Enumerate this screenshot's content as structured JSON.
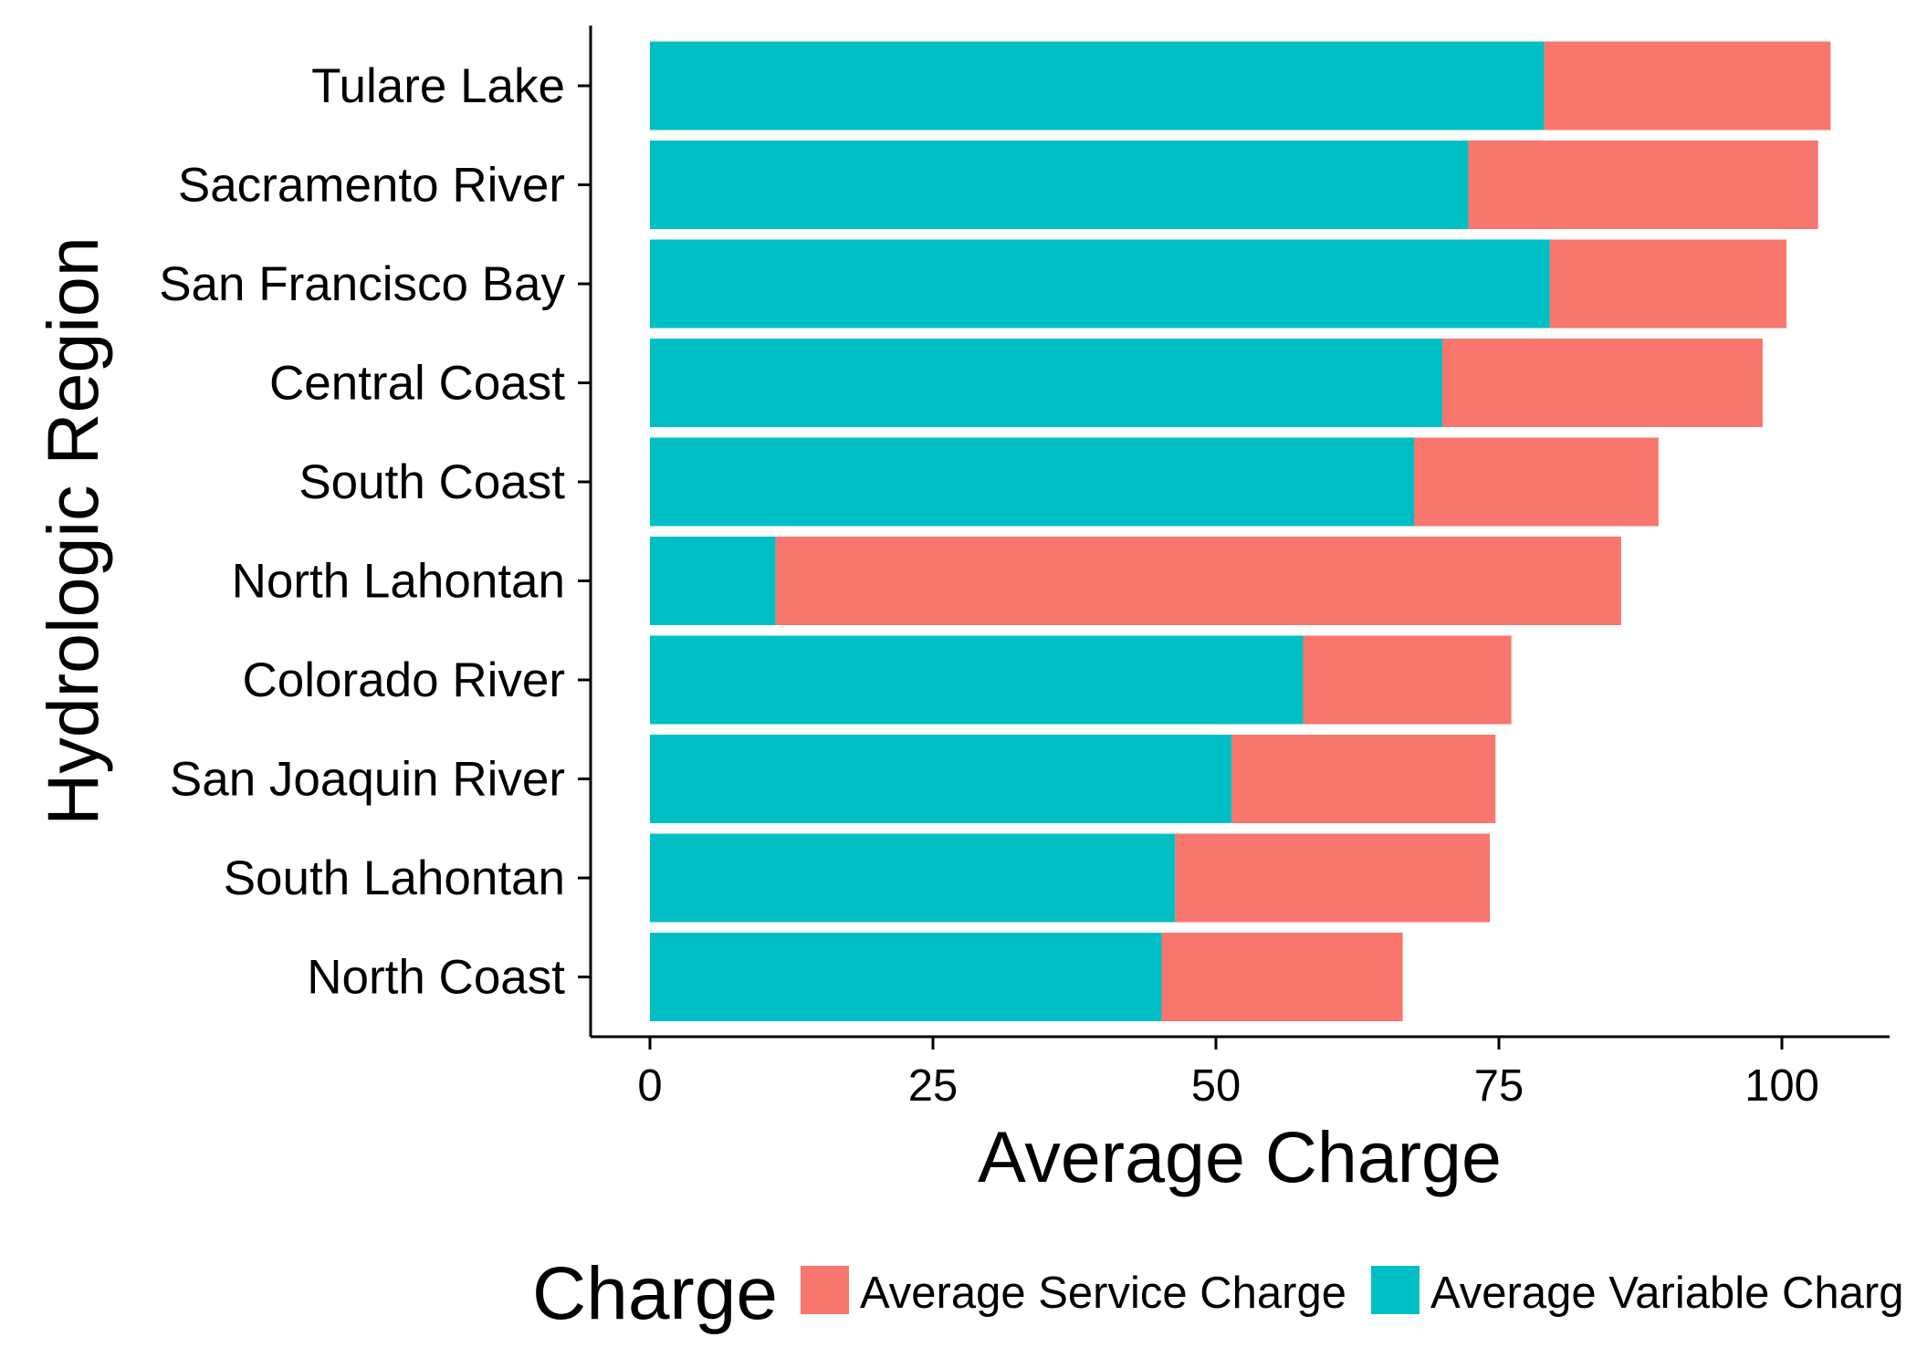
{
  "chart_data": {
    "type": "bar",
    "orientation": "horizontal",
    "stacked": true,
    "title": "",
    "xlabel": "Average Charge",
    "ylabel": "Hydrologic Region",
    "xlim": [
      0,
      106
    ],
    "xticks": [
      0,
      25,
      50,
      75,
      100
    ],
    "grid": false,
    "legend_position": "bottom",
    "legend_title": "Charge",
    "categories": [
      "Tulare Lake",
      "Sacramento River",
      "San Francisco Bay",
      "Central Coast",
      "South Coast",
      "North Lahontan",
      "Colorado River",
      "San Joaquin River",
      "South Lahontan",
      "North Coast"
    ],
    "series": [
      {
        "name": "Average Variable Charge",
        "color": "#00BFC4",
        "values": [
          79,
          72.3,
          79.5,
          70,
          67.5,
          11.1,
          57.7,
          51.4,
          46.4,
          45.2
        ]
      },
      {
        "name": "Average Service Charge",
        "color": "#F8766D",
        "values": [
          25.3,
          30.9,
          20.9,
          28.3,
          21.6,
          74.7,
          18.4,
          23.3,
          27.8,
          21.3
        ]
      }
    ],
    "legend_entries": [
      {
        "label": "Average Service Charge",
        "color": "#F8766D"
      },
      {
        "label": "Average Variable Charg",
        "color": "#00BFC4"
      }
    ]
  }
}
